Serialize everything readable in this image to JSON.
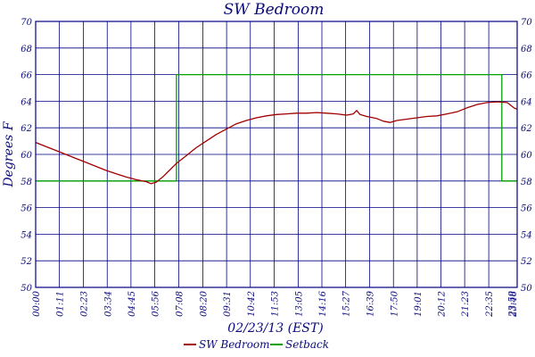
{
  "chart_data": {
    "type": "line",
    "title": "SW Bedroom",
    "xlabel": "02/23/13 (EST)",
    "ylabel": "Degrees F",
    "ylim": [
      50,
      70
    ],
    "yticks": [
      50,
      52,
      54,
      56,
      58,
      60,
      62,
      64,
      66,
      68,
      70
    ],
    "xlim_minutes": [
      0,
      1440
    ],
    "xtick_labels": [
      "00:00",
      "01:11",
      "02:23",
      "03:34",
      "04:45",
      "05:56",
      "07:08",
      "08:20",
      "09:31",
      "10:42",
      "11:53",
      "13:05",
      "14:16",
      "15:27",
      "16:39",
      "17:50",
      "19:01",
      "20:12",
      "21:23",
      "22:35",
      "23:46",
      "23:59"
    ],
    "grid": true,
    "legend_position": "bottom",
    "colors": {
      "frame": "#000080",
      "grid": "#000080",
      "tick_text": "#0a0a7a",
      "series_temp": "#a00000",
      "series_setback": "#00a000"
    },
    "series": [
      {
        "name": "SW Bedroom",
        "color": "#a00000",
        "points": [
          [
            "00:00",
            60.9
          ],
          [
            "00:30",
            60.6
          ],
          [
            "01:00",
            60.3
          ],
          [
            "01:30",
            60.0
          ],
          [
            "02:00",
            59.7
          ],
          [
            "02:30",
            59.4
          ],
          [
            "03:00",
            59.1
          ],
          [
            "03:30",
            58.8
          ],
          [
            "04:00",
            58.55
          ],
          [
            "04:30",
            58.3
          ],
          [
            "05:00",
            58.1
          ],
          [
            "05:30",
            57.95
          ],
          [
            "05:45",
            57.8
          ],
          [
            "06:00",
            57.9
          ],
          [
            "06:20",
            58.3
          ],
          [
            "06:40",
            58.8
          ],
          [
            "07:00",
            59.3
          ],
          [
            "07:30",
            59.9
          ],
          [
            "08:00",
            60.5
          ],
          [
            "08:30",
            61.0
          ],
          [
            "09:00",
            61.5
          ],
          [
            "09:30",
            61.9
          ],
          [
            "10:00",
            62.3
          ],
          [
            "10:30",
            62.55
          ],
          [
            "11:00",
            62.75
          ],
          [
            "11:30",
            62.9
          ],
          [
            "12:00",
            63.0
          ],
          [
            "12:30",
            63.05
          ],
          [
            "13:00",
            63.1
          ],
          [
            "13:30",
            63.1
          ],
          [
            "14:00",
            63.15
          ],
          [
            "14:30",
            63.1
          ],
          [
            "15:00",
            63.05
          ],
          [
            "15:30",
            62.95
          ],
          [
            "15:50",
            63.05
          ],
          [
            "16:00",
            63.3
          ],
          [
            "16:10",
            63.0
          ],
          [
            "16:30",
            62.85
          ],
          [
            "17:00",
            62.7
          ],
          [
            "17:20",
            62.5
          ],
          [
            "17:40",
            62.4
          ],
          [
            "18:00",
            62.55
          ],
          [
            "18:30",
            62.65
          ],
          [
            "19:00",
            62.75
          ],
          [
            "19:30",
            62.85
          ],
          [
            "20:00",
            62.9
          ],
          [
            "20:30",
            63.05
          ],
          [
            "21:00",
            63.2
          ],
          [
            "21:30",
            63.5
          ],
          [
            "22:00",
            63.75
          ],
          [
            "22:30",
            63.9
          ],
          [
            "23:00",
            63.95
          ],
          [
            "23:30",
            63.9
          ],
          [
            "23:50",
            63.5
          ],
          [
            "23:59",
            63.4
          ]
        ]
      },
      {
        "name": "Setback",
        "color": "#00a000",
        "points": [
          [
            "00:00",
            58
          ],
          [
            "07:01",
            58
          ],
          [
            "07:01",
            66
          ],
          [
            "23:14",
            66
          ],
          [
            "23:14",
            58
          ],
          [
            "23:59",
            58
          ]
        ]
      }
    ]
  }
}
